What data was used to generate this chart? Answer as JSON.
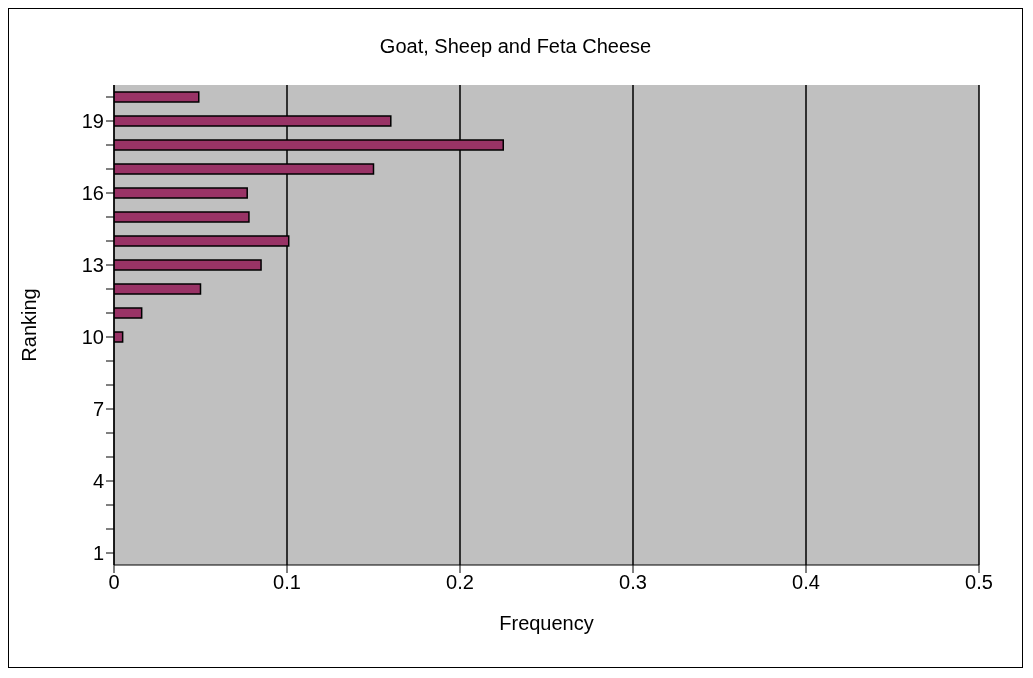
{
  "chart_data": {
    "type": "bar",
    "orientation": "horizontal",
    "title": "Goat, Sheep and Feta Cheese",
    "xlabel": "Frequency",
    "ylabel": "Ranking",
    "categories": [
      null,
      "19",
      null,
      null,
      "16",
      null,
      null,
      "13",
      null,
      null,
      "10",
      null,
      null,
      "7",
      null,
      null,
      "4",
      null,
      null,
      "1"
    ],
    "values": [
      0.049,
      0.16,
      0.225,
      0.15,
      0.077,
      0.078,
      0.101,
      0.085,
      0.05,
      0.016,
      0.005,
      0,
      0,
      0,
      0,
      0,
      0,
      0,
      0,
      0
    ],
    "color": "#993366",
    "xlim": [
      0,
      0.5
    ],
    "xticks": [
      0,
      0.1,
      0.2,
      0.3,
      0.4,
      0.5
    ],
    "grid": "x"
  }
}
